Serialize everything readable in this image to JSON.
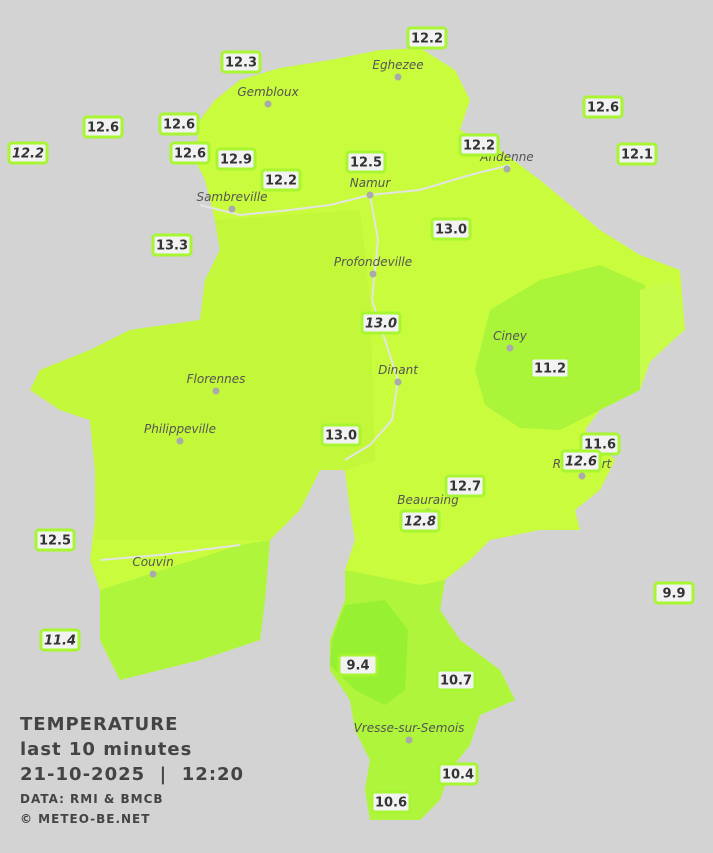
{
  "legend": {
    "title": "TEMPERATURE",
    "subtitle": "last 10 minutes",
    "timestamp": "21-10-2025  |  12:20",
    "source": "DATA: RMI & BMCB",
    "copyright": "© METEO-BE.NET"
  },
  "cities": [
    "Eghezee",
    "Gembloux",
    "Andenne",
    "Namur",
    "Sambreville",
    "Profondeville",
    "Ciney",
    "Dinant",
    "Florennes",
    "Philippeville",
    "Beauraing",
    "Rochefort",
    "Couvin",
    "Vresse-sur-Semois"
  ],
  "stations": [
    {
      "value": "12.2",
      "italic": false
    },
    {
      "value": "12.3",
      "italic": false
    },
    {
      "value": "12.6",
      "italic": false
    },
    {
      "value": "12.6",
      "italic": false
    },
    {
      "value": "12.6",
      "italic": false
    },
    {
      "value": "12.2",
      "italic": true
    },
    {
      "value": "12.6",
      "italic": false
    },
    {
      "value": "12.9",
      "italic": false
    },
    {
      "value": "12.5",
      "italic": false
    },
    {
      "value": "12.2",
      "italic": false
    },
    {
      "value": "12.1",
      "italic": false
    },
    {
      "value": "12.2",
      "italic": false
    },
    {
      "value": "13.0",
      "italic": false
    },
    {
      "value": "13.3",
      "italic": false
    },
    {
      "value": "13.0",
      "italic": true
    },
    {
      "value": "11.2",
      "italic": false
    },
    {
      "value": "13.0",
      "italic": false
    },
    {
      "value": "11.6",
      "italic": false
    },
    {
      "value": "12.6",
      "italic": true
    },
    {
      "value": "12.7",
      "italic": false
    },
    {
      "value": "12.8",
      "italic": true
    },
    {
      "value": "12.5",
      "italic": false
    },
    {
      "value": "9.9",
      "italic": false
    },
    {
      "value": "11.4",
      "italic": true
    },
    {
      "value": "9.4",
      "italic": false
    },
    {
      "value": "10.7",
      "italic": false
    },
    {
      "value": "10.4",
      "italic": false
    },
    {
      "value": "10.6",
      "italic": false
    }
  ]
}
